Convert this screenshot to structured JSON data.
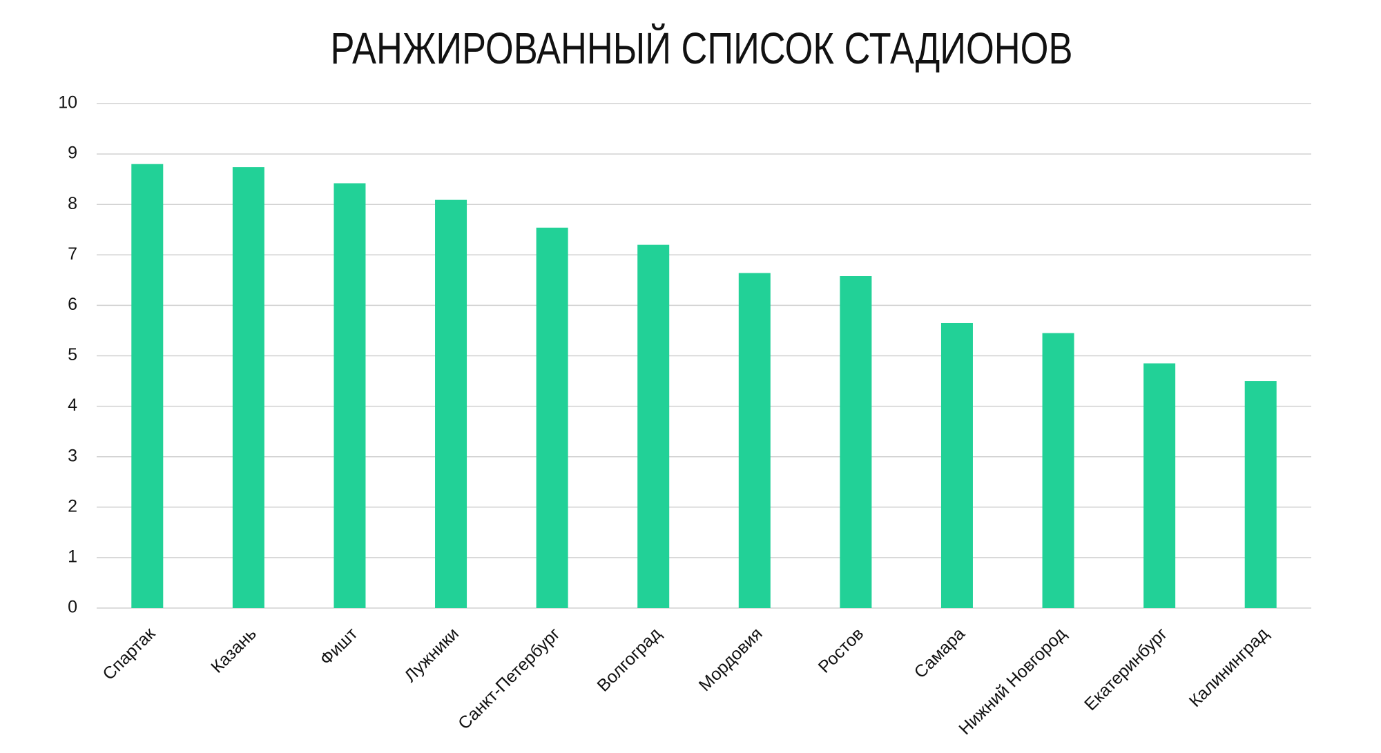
{
  "chart_data": {
    "type": "bar",
    "title": "РАНЖИРОВАННЫЙ СПИСОК СТАДИОНОВ",
    "categories": [
      "Спартак",
      "Казань",
      "Фишт",
      "Лужники",
      "Санкт-Петербург",
      "Волгоград",
      "Мордовия",
      "Ростов",
      "Самара",
      "Нижний Новгород",
      "Екатеринбург",
      "Калининград"
    ],
    "values": [
      8.8,
      8.74,
      8.42,
      8.09,
      7.54,
      7.2,
      6.64,
      6.58,
      5.65,
      5.45,
      4.85,
      4.5
    ],
    "color": "#22d197",
    "ylim": [
      0,
      10
    ],
    "yticks": [
      0,
      1,
      2,
      3,
      4,
      5,
      6,
      7,
      8,
      9,
      10
    ],
    "grid": true
  }
}
